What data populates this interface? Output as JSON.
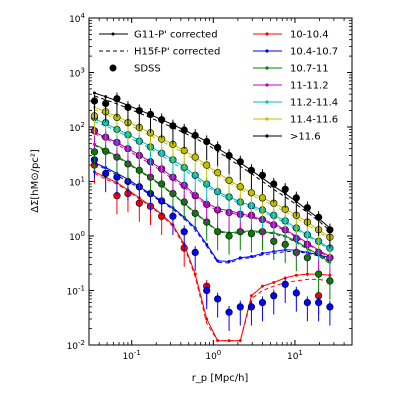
{
  "chart_data": {
    "type": "line",
    "xlabel": "r_p [Mpc/h]",
    "ylabel": "ΔΣ[hM⊙/pc²]",
    "x_scale": "log",
    "y_scale": "log",
    "xlim": [
      0.03,
      50
    ],
    "ylim": [
      0.01,
      10000
    ],
    "x_ticks": [
      {
        "value": 0.1,
        "base": "10",
        "exp": "-1"
      },
      {
        "value": 1,
        "base": "10",
        "exp": "0"
      },
      {
        "value": 10,
        "base": "10",
        "exp": "1"
      }
    ],
    "y_ticks": [
      {
        "value": 0.01,
        "base": "10",
        "exp": "-2"
      },
      {
        "value": 0.1,
        "base": "10",
        "exp": "-1"
      },
      {
        "value": 1,
        "base": "10",
        "exp": "0"
      },
      {
        "value": 10,
        "base": "10",
        "exp": "1"
      },
      {
        "value": 100,
        "base": "10",
        "exp": "2"
      },
      {
        "value": 1000,
        "base": "10",
        "exp": "3"
      },
      {
        "value": 10000,
        "base": "10",
        "exp": "4"
      }
    ],
    "grid": false,
    "legend_left": [
      {
        "label": "G11-P' corrected",
        "style": "solid-dot"
      },
      {
        "label": "H15f-P' corrected",
        "style": "dashed"
      },
      {
        "label": "SDSS",
        "style": "marker"
      }
    ],
    "legend_right_placement": "top-right",
    "x": [
      0.035,
      0.048,
      0.066,
      0.09,
      0.124,
      0.17,
      0.233,
      0.32,
      0.44,
      0.6,
      0.83,
      1.13,
      1.56,
      2.14,
      2.93,
      4.0,
      5.5,
      7.6,
      10.4,
      14.2,
      19.5,
      26.8
    ],
    "series": [
      {
        "name": "10-10.4",
        "color": "#ff0000",
        "model_solid": [
          15,
          12,
          9.5,
          7,
          5,
          3.6,
          2.5,
          1.6,
          0.7,
          0.2,
          0.03,
          0.012,
          0.012,
          0.012,
          0.08,
          0.12,
          0.14,
          0.17,
          0.19,
          0.2,
          0.2,
          0.19
        ],
        "model_dashed": [
          14,
          11,
          9,
          6.8,
          4.8,
          3.5,
          2.4,
          1.5,
          0.65,
          0.18,
          0.025,
          0.012,
          0.012,
          0.012,
          0.07,
          0.1,
          0.12,
          0.14,
          0.15,
          0.16,
          0.16,
          0.15
        ],
        "sdss": [
          20,
          null,
          5.5,
          6,
          4,
          3.5,
          2.3,
          null,
          0.6,
          null,
          0.12,
          null,
          null,
          null,
          null,
          null,
          null,
          null,
          null,
          null,
          0.08,
          null
        ]
      },
      {
        "name": "10.4-10.7",
        "color": "#0000ff",
        "model_solid": [
          22,
          18,
          14,
          11,
          8,
          6,
          4.4,
          3.3,
          2.2,
          1.4,
          0.7,
          0.35,
          0.34,
          0.4,
          0.42,
          0.48,
          0.52,
          0.56,
          0.55,
          0.5,
          0.45,
          0.4
        ],
        "model_dashed": [
          21,
          17,
          13,
          10,
          7.6,
          5.7,
          4.2,
          3.1,
          2.1,
          1.3,
          0.65,
          0.33,
          0.32,
          0.38,
          0.4,
          0.45,
          0.48,
          0.52,
          0.52,
          0.48,
          0.43,
          0.38
        ],
        "sdss": [
          25,
          14,
          12,
          10,
          8,
          6,
          4.4,
          2.3,
          1.2,
          0.5,
          0.1,
          0.07,
          0.04,
          0.05,
          0.05,
          0.06,
          0.08,
          0.13,
          0.09,
          0.06,
          0.06,
          0.05
        ]
      },
      {
        "name": "10.7-11",
        "color": "#008000",
        "model_solid": [
          48,
          38,
          29,
          22,
          16,
          12,
          8.5,
          6,
          4,
          2.7,
          1.8,
          1.25,
          1.15,
          1.2,
          1.25,
          1.2,
          1.15,
          1.0,
          0.8,
          0.6,
          0.45,
          0.33
        ],
        "model_dashed": [
          46,
          36,
          28,
          21,
          15.5,
          11.5,
          8.2,
          5.8,
          3.9,
          2.6,
          1.75,
          1.2,
          1.1,
          1.15,
          1.2,
          1.15,
          1.1,
          0.95,
          0.76,
          0.57,
          0.43,
          0.31
        ],
        "sdss": [
          35,
          36,
          28,
          21,
          16,
          12,
          9,
          6,
          4.2,
          2.6,
          1.8,
          1.2,
          1.0,
          1.2,
          1.1,
          1.2,
          0.8,
          0.7,
          0.5,
          0.4,
          0.2,
          0.15
        ]
      },
      {
        "name": "11-11.2",
        "color": "#c000c0",
        "model_solid": [
          80,
          65,
          52,
          40,
          31,
          23,
          17,
          12,
          8.5,
          5.7,
          4.0,
          3.2,
          2.9,
          2.6,
          2.3,
          2.0,
          1.7,
          1.3,
          1.0,
          0.75,
          0.55,
          0.42
        ],
        "model_dashed": [
          75,
          61,
          48,
          37,
          28,
          21,
          15.5,
          11,
          7.8,
          5.3,
          3.7,
          2.9,
          2.7,
          2.4,
          2.2,
          1.9,
          1.6,
          1.25,
          0.95,
          0.72,
          0.52,
          0.4
        ],
        "sdss": [
          85,
          65,
          52,
          40,
          30,
          23,
          17,
          12,
          8.5,
          5.5,
          3.8,
          3.0,
          2.7,
          2.5,
          2.4,
          2.0,
          1.6,
          1.3,
          0.9,
          0.7,
          0.5,
          0.4
        ]
      },
      {
        "name": "11.2-11.4",
        "color": "#00c0c0",
        "model_solid": [
          140,
          115,
          92,
          73,
          57,
          44,
          33,
          25,
          18.5,
          13,
          9,
          6.5,
          5.2,
          4.2,
          3.6,
          3.0,
          2.4,
          1.9,
          1.4,
          1.05,
          0.8,
          0.6
        ],
        "model_dashed": [
          125,
          105,
          84,
          66,
          51,
          40,
          30,
          22,
          16.5,
          11.8,
          8.2,
          6.0,
          4.8,
          3.9,
          3.3,
          2.8,
          2.2,
          1.75,
          1.3,
          1.0,
          0.75,
          0.57
        ],
        "sdss": [
          150,
          120,
          90,
          72,
          55,
          43,
          33,
          25,
          18,
          13,
          9,
          6.5,
          5.2,
          4.2,
          3.6,
          3.0,
          2.4,
          1.9,
          1.4,
          1.05,
          0.8,
          0.6
        ]
      },
      {
        "name": "11.4-11.6",
        "color": "#c0c000",
        "model_solid": [
          230,
          190,
          155,
          125,
          98,
          78,
          61,
          48,
          37,
          28,
          20,
          14.5,
          10.5,
          8.0,
          6.2,
          5.0,
          4.0,
          3.1,
          2.4,
          1.8,
          1.3,
          0.95
        ],
        "model_dashed": [
          210,
          170,
          140,
          112,
          88,
          70,
          55,
          43,
          33,
          25,
          18,
          13,
          9.5,
          7.2,
          5.6,
          4.5,
          3.6,
          2.8,
          2.15,
          1.6,
          1.2,
          0.85
        ],
        "sdss": [
          160,
          190,
          150,
          120,
          98,
          78,
          60,
          48,
          37,
          28,
          20,
          14.5,
          10.5,
          8.0,
          6.2,
          5.0,
          4.0,
          3.1,
          2.4,
          1.8,
          1.3,
          0.95
        ]
      },
      {
        "name": ">11.6",
        "color": "#000000",
        "model_solid": [
          420,
          360,
          300,
          250,
          205,
          168,
          136,
          110,
          88,
          70,
          54,
          41,
          30,
          22,
          16,
          11.5,
          8.2,
          6.0,
          4.3,
          3.0,
          2.1,
          1.4
        ],
        "model_dashed": [
          370,
          315,
          265,
          220,
          180,
          148,
          120,
          97,
          78,
          62,
          48,
          36,
          26,
          19,
          14,
          10,
          7.2,
          5.2,
          3.8,
          2.7,
          1.9,
          1.25
        ],
        "sdss": [
          300,
          270,
          330,
          230,
          200,
          170,
          136,
          105,
          88,
          70,
          54,
          42,
          30,
          23,
          16,
          13,
          9,
          7.2,
          5.0,
          3.3,
          2.2,
          1.3
        ]
      }
    ]
  }
}
